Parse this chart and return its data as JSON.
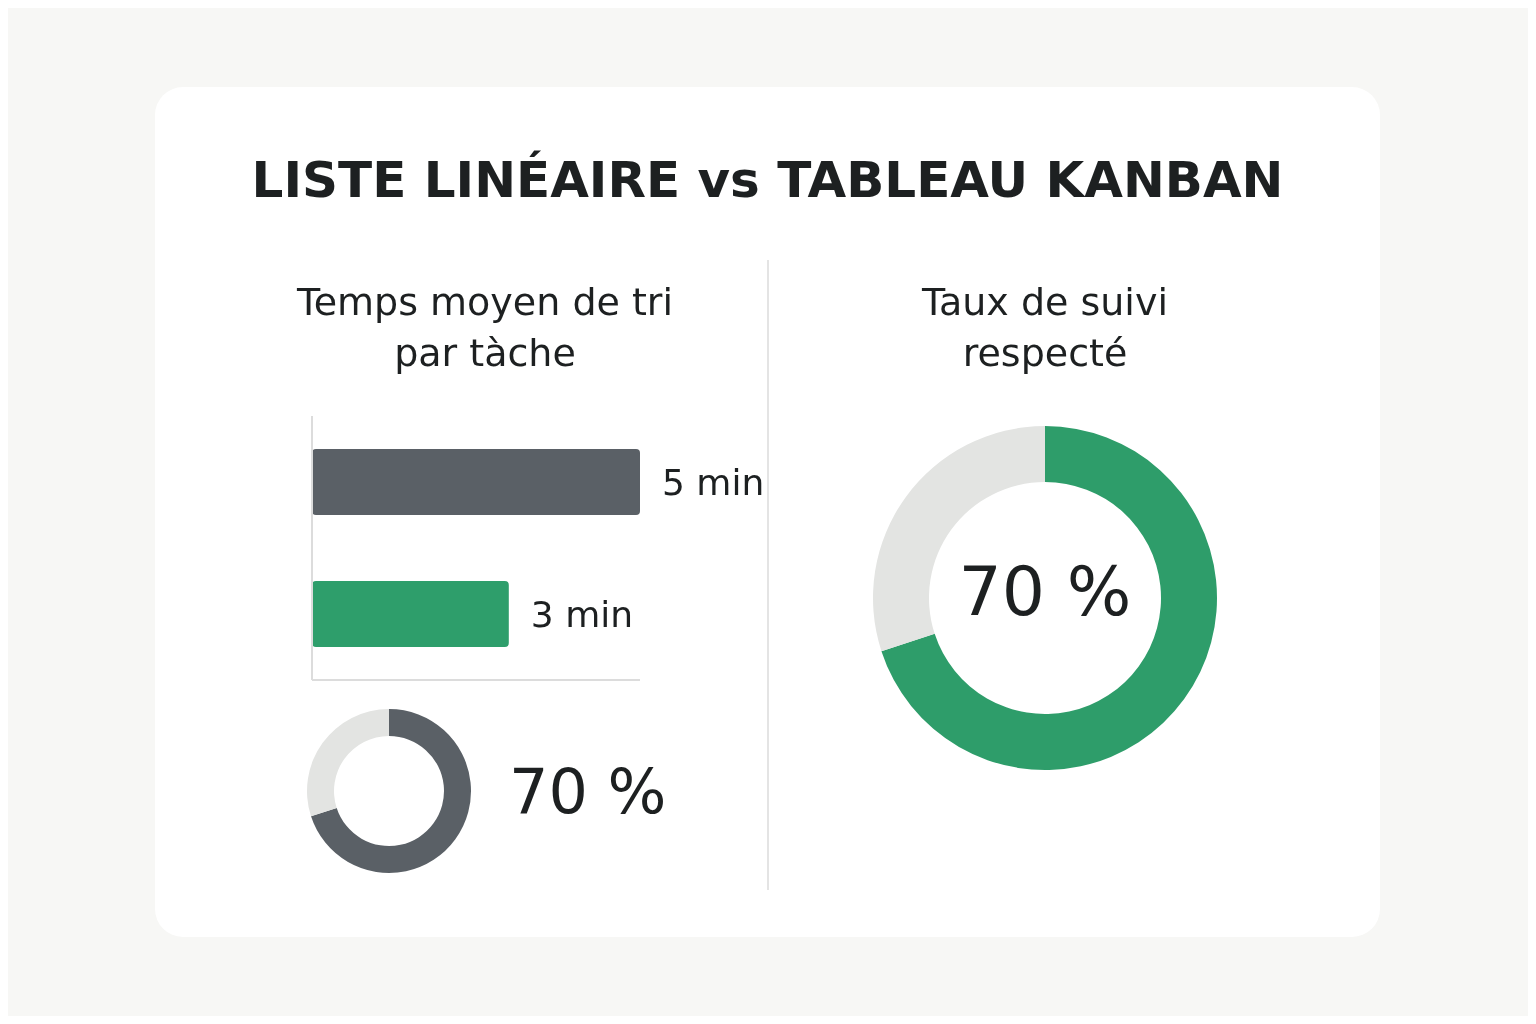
{
  "chart_data": [
    {
      "type": "other",
      "title": "LISTE LINÉAIRE vs TABLEAU KANBAN"
    },
    {
      "type": "bar",
      "orientation": "horizontal",
      "title": "Temps moyen de tri par tàche",
      "categories": [
        null,
        null
      ],
      "values": [
        5,
        3
      ],
      "value_labels": [
        "5 min",
        "3 min"
      ],
      "colors": [
        "#5a6066",
        "#2e9e6b"
      ]
    },
    {
      "type": "donut",
      "categories": [
        null,
        null
      ],
      "values": [
        70,
        30
      ],
      "value_labels": [
        "70 %",
        null
      ],
      "colors": [
        "#5a6066",
        "#e3e4e2"
      ]
    },
    {
      "type": "donut",
      "title": "Taux de suivi respecté",
      "categories": [
        null,
        null
      ],
      "values": [
        70,
        30
      ],
      "value_labels": [
        "70 %",
        null
      ],
      "colors": [
        "#2e9d6a",
        "#e3e4e2"
      ]
    }
  ]
}
